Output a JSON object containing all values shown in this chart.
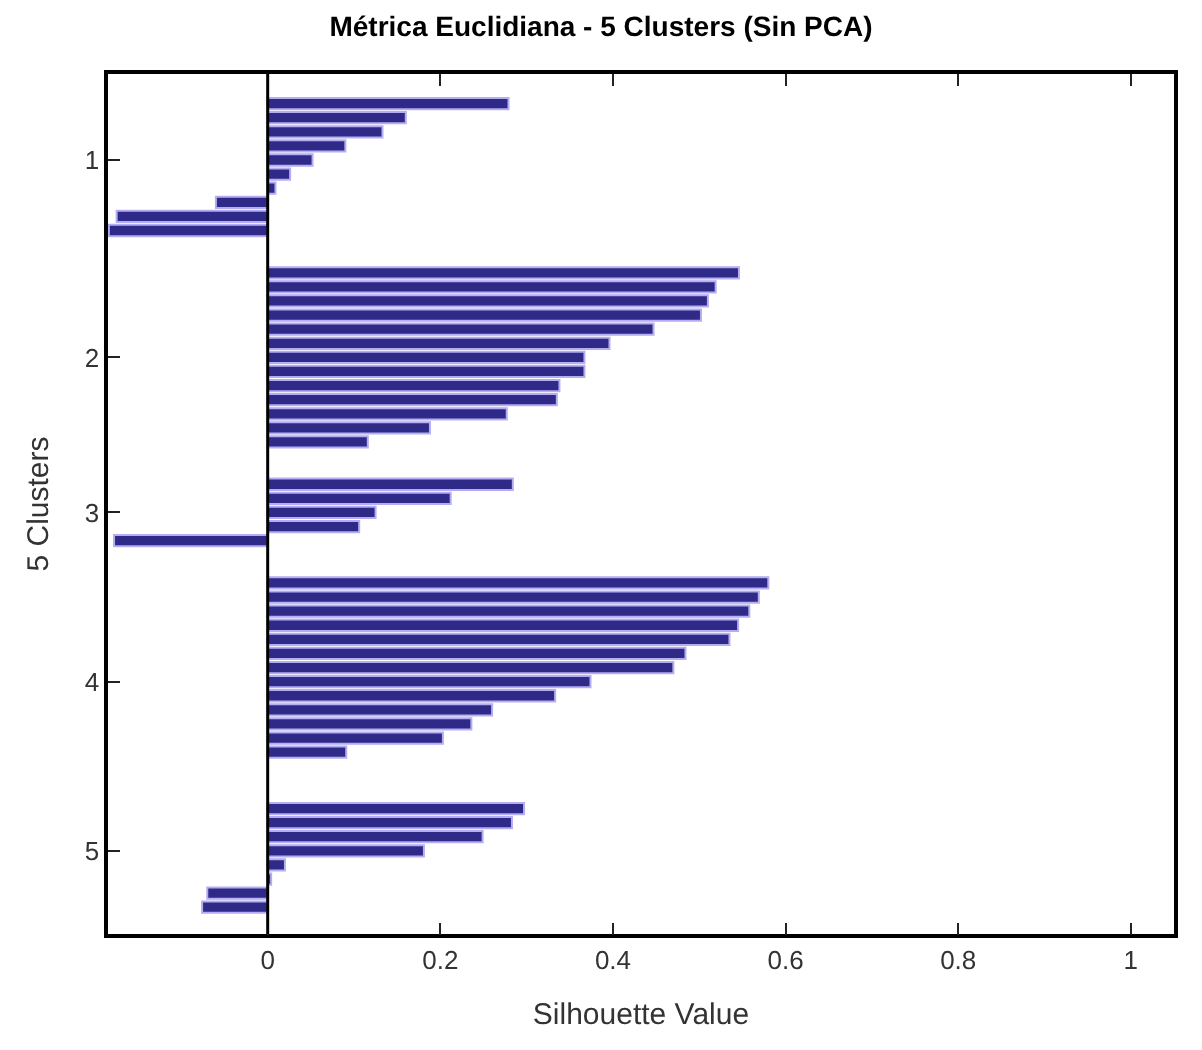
{
  "chart_data": {
    "type": "bar",
    "orientation": "horizontal",
    "title": "Métrica Euclidiana - 5 Clusters (Sin PCA)",
    "xlabel": "Silhouette Value",
    "ylabel": "5 Clusters",
    "categories": [
      null,
      null,
      null,
      null,
      "1",
      null,
      null,
      null,
      null,
      null,
      null,
      null,
      null,
      null,
      null,
      null,
      null,
      null,
      "2",
      null,
      null,
      null,
      null,
      null,
      null,
      null,
      null,
      null,
      null,
      "3",
      null,
      null,
      null,
      null,
      null,
      null,
      null,
      null,
      null,
      null,
      null,
      "4",
      null,
      null,
      null,
      null,
      null,
      null,
      null,
      null,
      null,
      null,
      null,
      "5",
      null,
      null,
      null,
      null
    ],
    "values": [
      0.279,
      0.16,
      0.133,
      0.09,
      0.052,
      0.026,
      0.009,
      -0.06,
      -0.175,
      -0.184,
      null,
      null,
      0.546,
      0.519,
      0.51,
      0.502,
      0.447,
      0.396,
      0.367,
      0.367,
      0.338,
      0.335,
      0.277,
      0.188,
      0.116,
      null,
      null,
      0.284,
      0.212,
      0.125,
      0.106,
      -0.178,
      null,
      null,
      0.58,
      0.569,
      0.558,
      0.545,
      0.535,
      0.484,
      0.47,
      0.374,
      0.333,
      0.26,
      0.236,
      0.203,
      0.091,
      null,
      null,
      null,
      0.297,
      0.283,
      0.249,
      0.181,
      0.02,
      0.004,
      -0.07,
      -0.076
    ],
    "color": "#2f2a88",
    "xlim": [
      -0.185,
      1.05
    ],
    "xticks": [
      0,
      0.2,
      0.4,
      0.6,
      0.8,
      1
    ],
    "grid": false,
    "ref_lines": [
      {
        "axis": "x",
        "value": 0,
        "color": "#000000"
      }
    ]
  }
}
